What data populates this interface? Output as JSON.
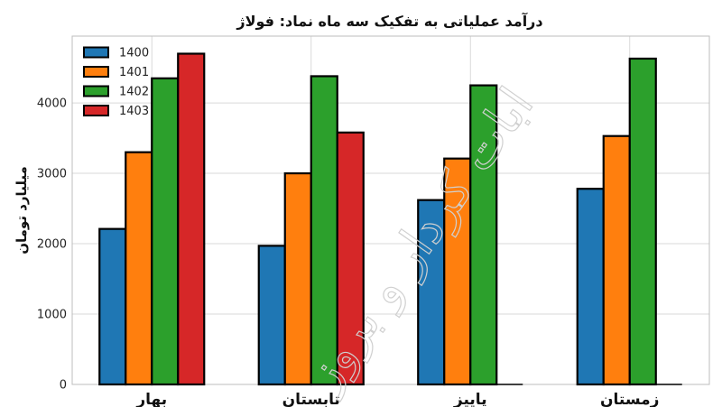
{
  "chart_data": {
    "type": "bar",
    "title": "درآمد عملیاتی به تفکیک سه ماه نماد: فولاژ",
    "xlabel": "",
    "ylabel": "میلیارد تومان",
    "categories": [
      "بهار",
      "تابستان",
      "پاییز",
      "زمستان"
    ],
    "yticks": [
      0,
      1000,
      2000,
      3000,
      4000
    ],
    "ylim": [
      0,
      4950
    ],
    "grid": true,
    "legend_position": "top-left",
    "watermark": "ابات کردار و بروز",
    "series": [
      {
        "name": "1400",
        "color": "#1f77b4",
        "values": [
          2210,
          1970,
          2620,
          2780
        ]
      },
      {
        "name": "1401",
        "color": "#ff7f0e",
        "values": [
          3300,
          3000,
          3210,
          3530
        ]
      },
      {
        "name": "1402",
        "color": "#2ca02c",
        "values": [
          4350,
          4380,
          4250,
          4630
        ]
      },
      {
        "name": "1403",
        "color": "#d62728",
        "values": [
          4700,
          3580,
          0,
          0
        ]
      }
    ]
  }
}
